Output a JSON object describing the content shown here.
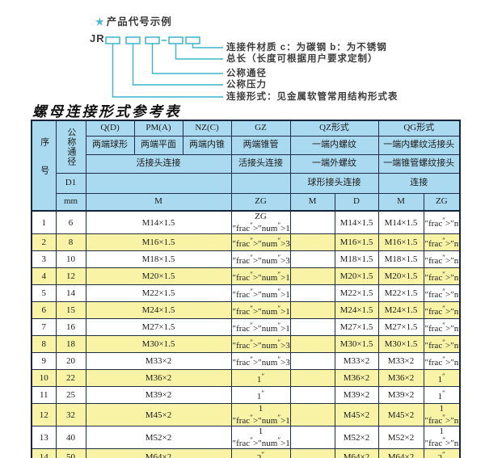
{
  "diagram": {
    "star": "★",
    "title": "产品代号示例",
    "code_prefix": "JR",
    "labels": [
      "连接件材质  c：为碳钢  b：为不锈钢",
      "总长（长度可根据用户要求定制）",
      "公称通径",
      "公称压力",
      "连接形式：见金属软管常用结构形式表"
    ],
    "line_color": "#3ab5c8",
    "star_color": "#4cb9d6"
  },
  "table": {
    "title": "螺母连接形式参考表",
    "header": {
      "seq": "序号",
      "nominal_diameter": "公称通径",
      "d1": "D1",
      "mm": "mm",
      "codes": [
        "Q(D)",
        "PM(A)",
        "NZ(C)",
        "GZ",
        "QZ形式",
        "QG形式"
      ],
      "desc": [
        "两端球形",
        "两端平面",
        "两端内锥",
        "两端锥管",
        "一端内螺纹",
        "一端内螺纹活接头"
      ],
      "row3": [
        "活接头连接",
        "活接头连接",
        "一端外螺纹",
        "一端锥管螺纹接头"
      ],
      "row4_qz": "球形接头连接",
      "row4_qg": "连接",
      "units": {
        "m": "M",
        "zg": "ZG",
        "qz_m": "M",
        "qz_d": "D",
        "qg_m": "M",
        "qg_zg": "ZG"
      }
    },
    "rows": [
      {
        "seq": "1",
        "mm": "6",
        "m": "M14×1.5",
        "zg": "ZG 1/4\"",
        "qz_m": "",
        "qz_d": "M14×1.5",
        "qg_m": "M14×1.5",
        "qg_zg": "1/4\""
      },
      {
        "seq": "2",
        "mm": "8",
        "m": "M16×1.5",
        "zg": "3/8\"",
        "qz_m": "",
        "qz_d": "M16×1.5",
        "qg_m": "M16×1.5",
        "qg_zg": "3/8\""
      },
      {
        "seq": "3",
        "mm": "10",
        "m": "M18×1.5",
        "zg": "3/8\"",
        "qz_m": "",
        "qz_d": "M18×1.5",
        "qg_m": "M18×1.5",
        "qg_zg": "3/8\""
      },
      {
        "seq": "4",
        "mm": "12",
        "m": "M20×1.5",
        "zg": "1/2\"",
        "qz_m": "",
        "qz_d": "M20×1.5",
        "qg_m": "M20×1.5",
        "qg_zg": "1/2\""
      },
      {
        "seq": "5",
        "mm": "14",
        "m": "M22×1.5",
        "zg": "1/2\"",
        "qz_m": "",
        "qz_d": "M22×1.5",
        "qg_m": "M22×1.5",
        "qg_zg": "1/2\""
      },
      {
        "seq": "6",
        "mm": "15",
        "m": "M24×1.5",
        "zg": "1/2\"",
        "qz_m": "",
        "qz_d": "M24×1.5",
        "qg_m": "M24×1.5",
        "qg_zg": "1/2\""
      },
      {
        "seq": "7",
        "mm": "16",
        "m": "M27×1.5",
        "zg": "1/2\"",
        "qz_m": "",
        "qz_d": "M27×1.5",
        "qg_m": "M27×1.5",
        "qg_zg": "1/2\""
      },
      {
        "seq": "8",
        "mm": "18",
        "m": "M30×1.5",
        "zg": "3/4\"",
        "qz_m": "",
        "qz_d": "M30×1.5",
        "qg_m": "M30×1.5",
        "qg_zg": "3/4\""
      },
      {
        "seq": "9",
        "mm": "20",
        "m": "M33×2",
        "zg": "3/4\"",
        "qz_m": "",
        "qz_d": "M33×2",
        "qg_m": "M33×2",
        "qg_zg": "3/4\""
      },
      {
        "seq": "10",
        "mm": "22",
        "m": "M36×2",
        "zg": "1\"",
        "qz_m": "",
        "qz_d": "M36×2",
        "qg_m": "M36×2",
        "qg_zg": "1\""
      },
      {
        "seq": "11",
        "mm": "25",
        "m": "M39×2",
        "zg": "1\"",
        "qz_m": "",
        "qz_d": "M39×2",
        "qg_m": "M39×2",
        "qg_zg": "1\""
      },
      {
        "seq": "12",
        "mm": "32",
        "m": "M45×2",
        "zg": "1 1/4\"",
        "qz_m": "",
        "qz_d": "M45×2",
        "qg_m": "M45×2",
        "qg_zg": "1 1/4\""
      },
      {
        "seq": "13",
        "mm": "40",
        "m": "M52×2",
        "zg": "1 1/2\"",
        "qz_m": "",
        "qz_d": "M52×2",
        "qg_m": "M52×2",
        "qg_zg": "1 1/2\""
      },
      {
        "seq": "14",
        "mm": "50",
        "m": "M64×2",
        "zg": "2\"",
        "qz_m": "",
        "qz_d": "M64×2",
        "qg_m": "M64×2",
        "qg_zg": "2\""
      }
    ],
    "colors": {
      "header_bg": "#aadaef",
      "alt_row_bg": "#f9f3a5",
      "grid": "#1f2d49"
    }
  }
}
